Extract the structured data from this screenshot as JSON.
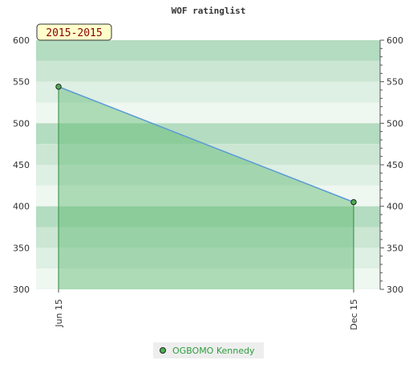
{
  "chart_data": {
    "type": "area",
    "title": "WOF ratinglist",
    "badge": "2015-2015",
    "categories": [
      "Jun 15",
      "Dec 15"
    ],
    "series": [
      {
        "name": "OGBOMO Kennedy",
        "values": [
          544,
          405
        ]
      }
    ],
    "ylim": [
      300,
      600
    ],
    "yticks": [
      300,
      350,
      400,
      450,
      500,
      550,
      600
    ],
    "ytick_labels": [
      "300",
      "350",
      "400",
      "450",
      "500",
      "550",
      "600"
    ],
    "grid": true,
    "legend_position": "bottom-center",
    "colors": {
      "band_dark": "#b4dcc0",
      "band_mid": "#cbe6d3",
      "band_light": "#deefe3",
      "band_lightest": "#eef7f0",
      "area_fill": "#5cb86e",
      "line": "#5b9bd5",
      "marker": "#4caf50",
      "badge_bg": "#ffffcc"
    }
  }
}
